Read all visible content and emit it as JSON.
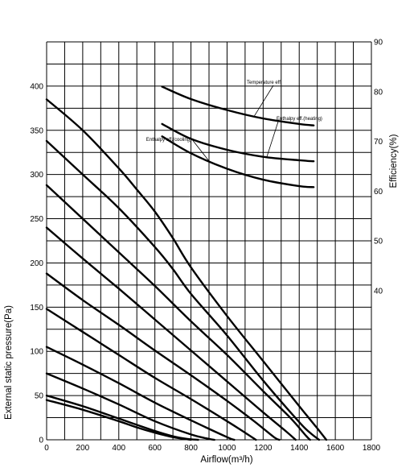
{
  "chart_data": {
    "type": "line",
    "x_axis": {
      "label": "Airflow(m³/h)",
      "range": [
        0,
        1800
      ],
      "ticks": [
        0,
        200,
        400,
        600,
        800,
        1000,
        1200,
        1400,
        1600,
        1800
      ],
      "minor_step": 100
    },
    "y_axis_left": {
      "label": "External static pressure(Pa)",
      "range": [
        0,
        450
      ],
      "labeled_ticks": [
        0,
        50,
        100,
        150,
        200,
        250,
        300,
        350,
        400
      ],
      "minor_step": 25
    },
    "y_axis_right": {
      "label": "Efficiency(%)",
      "range": [
        10,
        90
      ],
      "labeled_ticks": [
        40,
        50,
        60,
        70,
        80,
        90
      ]
    },
    "grid": true,
    "pressure_curves": [
      {
        "x": [
          0,
          200,
          400,
          500,
          600,
          700,
          800
        ],
        "y": [
          45,
          34,
          21,
          14,
          8,
          3,
          0
        ]
      },
      {
        "x": [
          0,
          200,
          400,
          600,
          700,
          780,
          840
        ],
        "y": [
          50,
          38,
          24,
          10,
          4,
          1,
          0
        ]
      },
      {
        "x": [
          0,
          200,
          400,
          600,
          800,
          900,
          930
        ],
        "y": [
          75,
          58,
          40,
          21,
          6,
          1,
          0
        ]
      },
      {
        "x": [
          0,
          200,
          400,
          600,
          800,
          1000,
          1040
        ],
        "y": [
          105,
          85,
          64,
          42,
          22,
          3,
          0
        ]
      },
      {
        "x": [
          0,
          200,
          400,
          600,
          800,
          1000,
          1100,
          1160
        ],
        "y": [
          148,
          122,
          96,
          70,
          46,
          21,
          8,
          0
        ]
      },
      {
        "x": [
          0,
          200,
          400,
          600,
          800,
          1000,
          1150,
          1260,
          1290
        ],
        "y": [
          188,
          158,
          130,
          101,
          73,
          44,
          21,
          3,
          0
        ]
      },
      {
        "x": [
          0,
          200,
          400,
          600,
          800,
          1000,
          1200,
          1330,
          1380
        ],
        "y": [
          240,
          205,
          171,
          136,
          101,
          66,
          31,
          9,
          0
        ]
      },
      {
        "x": [
          0,
          200,
          400,
          600,
          800,
          1000,
          1200,
          1350,
          1440,
          1460
        ],
        "y": [
          288,
          250,
          212,
          174,
          134,
          96,
          55,
          25,
          4,
          0
        ]
      },
      {
        "x": [
          0,
          200,
          400,
          600,
          700,
          800,
          1000,
          1200,
          1400,
          1460,
          1510
        ],
        "y": [
          338,
          300,
          262,
          218,
          193,
          165,
          118,
          67,
          20,
          8,
          0
        ]
      },
      {
        "x": [
          0,
          200,
          400,
          500,
          600,
          700,
          800,
          1000,
          1200,
          1400,
          1500,
          1550
        ],
        "y": [
          385,
          350,
          307,
          283,
          258,
          228,
          195,
          140,
          89,
          38,
          13,
          0
        ]
      }
    ],
    "efficiency_curves": [
      {
        "name": "Temperature eff.",
        "x": [
          640,
          800,
          1000,
          1200,
          1400,
          1480
        ],
        "y": [
          81,
          78.5,
          76.3,
          74.6,
          73.5,
          73.2
        ]
      },
      {
        "name": "Enthalpy eff.(heating)",
        "x": [
          640,
          800,
          1000,
          1200,
          1400,
          1480
        ],
        "y": [
          73.5,
          70.5,
          68.3,
          66.9,
          66.2,
          66
        ]
      },
      {
        "name": "Enthalpy eff.(cooling)",
        "x": [
          640,
          800,
          1000,
          1200,
          1400,
          1480
        ],
        "y": [
          71,
          67.6,
          64.5,
          62.3,
          61,
          60.8
        ]
      }
    ]
  }
}
